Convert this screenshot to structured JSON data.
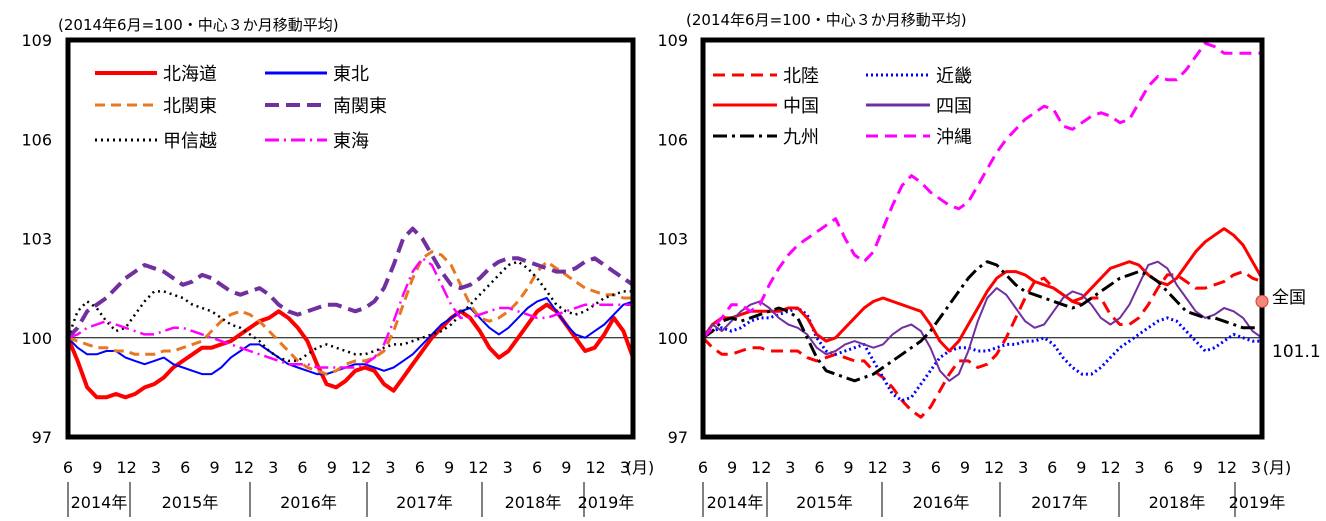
{
  "chart_data": [
    {
      "type": "line",
      "subtitle": "(2014年6月=100・中心３か月移動平均)",
      "ylim": [
        97,
        109
      ],
      "yticks": [
        97,
        100,
        103,
        106,
        109
      ],
      "baseline": 100,
      "x_month_labels": [
        "6",
        "9",
        "12",
        "3",
        "6",
        "9",
        "12",
        "3",
        "6",
        "9",
        "12",
        "3",
        "6",
        "9",
        "12",
        "3",
        "6",
        "9",
        "12",
        "3"
      ],
      "x_unit_label": "(月)",
      "x_year_labels": [
        "2014年",
        "2015年",
        "2016年",
        "2017年",
        "2018年",
        "2019年"
      ],
      "x_start": "2014-06",
      "x_end": "2019-03",
      "series": [
        {
          "name": "北海道",
          "color": "#ff0000",
          "dash": "solid",
          "width": 4,
          "values": [
            100.0,
            99.3,
            98.5,
            98.2,
            98.2,
            98.3,
            98.2,
            98.3,
            98.5,
            98.6,
            98.8,
            99.1,
            99.3,
            99.5,
            99.7,
            99.7,
            99.8,
            99.9,
            100.1,
            100.3,
            100.5,
            100.6,
            100.8,
            100.6,
            100.3,
            99.9,
            99.2,
            98.6,
            98.5,
            98.7,
            99.0,
            99.1,
            99.0,
            98.6,
            98.4,
            98.8,
            99.2,
            99.6,
            100.0,
            100.3,
            100.6,
            100.8,
            100.6,
            100.2,
            99.7,
            99.4,
            99.6,
            100.0,
            100.4,
            100.8,
            101.0,
            100.8,
            100.4,
            100.0,
            99.6,
            99.7,
            100.1,
            100.6,
            100.2,
            99.4
          ]
        },
        {
          "name": "東北",
          "color": "#0000ff",
          "dash": "solid",
          "width": 2,
          "values": [
            100.0,
            99.7,
            99.5,
            99.5,
            99.6,
            99.6,
            99.4,
            99.3,
            99.2,
            99.3,
            99.4,
            99.2,
            99.1,
            99.0,
            98.9,
            98.9,
            99.1,
            99.4,
            99.6,
            99.8,
            99.8,
            99.6,
            99.4,
            99.2,
            99.1,
            99.0,
            98.9,
            98.9,
            99.0,
            99.1,
            99.2,
            99.2,
            99.1,
            99.0,
            99.1,
            99.3,
            99.5,
            99.8,
            100.1,
            100.4,
            100.6,
            100.8,
            100.9,
            100.6,
            100.3,
            100.1,
            100.3,
            100.6,
            100.9,
            101.1,
            101.2,
            100.8,
            100.4,
            100.1,
            100.0,
            100.2,
            100.4,
            100.7,
            101.0,
            101.1
          ]
        },
        {
          "name": "北関東",
          "color": "#e87722",
          "dash": "10 6",
          "width": 3,
          "values": [
            100.0,
            99.9,
            99.8,
            99.7,
            99.7,
            99.6,
            99.6,
            99.5,
            99.5,
            99.5,
            99.6,
            99.6,
            99.7,
            99.8,
            99.9,
            100.2,
            100.5,
            100.7,
            100.8,
            100.7,
            100.5,
            100.2,
            99.9,
            99.6,
            99.3,
            99.1,
            99.0,
            98.9,
            99.0,
            99.2,
            99.3,
            99.3,
            99.4,
            99.6,
            100.2,
            101.0,
            101.8,
            102.4,
            102.6,
            102.5,
            102.2,
            101.6,
            101.0,
            100.6,
            100.5,
            100.6,
            100.8,
            101.1,
            101.5,
            102.0,
            102.3,
            102.1,
            101.9,
            101.7,
            101.5,
            101.4,
            101.3,
            101.3,
            101.2,
            101.2
          ]
        },
        {
          "name": "南関東",
          "color": "#7030a0",
          "dash": "14 7",
          "width": 4,
          "values": [
            100.0,
            100.3,
            100.8,
            101.0,
            101.2,
            101.5,
            101.8,
            102.0,
            102.2,
            102.1,
            102.0,
            101.8,
            101.6,
            101.7,
            101.9,
            101.8,
            101.6,
            101.4,
            101.3,
            101.4,
            101.5,
            101.3,
            101.0,
            100.8,
            100.7,
            100.8,
            100.9,
            101.0,
            101.0,
            100.9,
            100.8,
            100.9,
            101.1,
            101.5,
            102.2,
            103.0,
            103.3,
            103.0,
            102.5,
            102.0,
            101.6,
            101.5,
            101.6,
            101.8,
            102.1,
            102.3,
            102.4,
            102.4,
            102.3,
            102.2,
            102.1,
            102.0,
            102.0,
            102.1,
            102.3,
            102.4,
            102.2,
            102.0,
            101.8,
            101.6
          ]
        },
        {
          "name": "甲信越",
          "color": "#000000",
          "dash": "2 4",
          "width": 2.5,
          "values": [
            100.0,
            100.8,
            101.1,
            100.9,
            100.5,
            100.2,
            100.3,
            100.7,
            101.1,
            101.4,
            101.4,
            101.3,
            101.2,
            101.0,
            100.9,
            100.8,
            100.6,
            100.4,
            100.3,
            100.1,
            99.9,
            99.6,
            99.4,
            99.3,
            99.3,
            99.5,
            99.7,
            99.8,
            99.7,
            99.6,
            99.5,
            99.5,
            99.6,
            99.7,
            99.8,
            99.8,
            99.9,
            100.0,
            100.1,
            100.2,
            100.4,
            100.7,
            101.0,
            101.3,
            101.6,
            101.9,
            102.2,
            102.3,
            102.1,
            101.8,
            101.4,
            101.0,
            100.8,
            100.7,
            100.8,
            101.0,
            101.2,
            101.3,
            101.4,
            101.4
          ]
        },
        {
          "name": "東海",
          "color": "#ff00ff",
          "dash": "14 5 2 5",
          "width": 2.5,
          "values": [
            100.0,
            100.1,
            100.3,
            100.4,
            100.5,
            100.4,
            100.3,
            100.2,
            100.1,
            100.1,
            100.2,
            100.3,
            100.3,
            100.2,
            100.1,
            100.0,
            99.9,
            99.8,
            99.7,
            99.6,
            99.5,
            99.4,
            99.3,
            99.2,
            99.2,
            99.2,
            99.1,
            99.1,
            99.1,
            99.1,
            99.1,
            99.2,
            99.4,
            99.8,
            100.5,
            101.3,
            102.0,
            102.4,
            102.2,
            101.6,
            101.0,
            100.6,
            100.6,
            100.7,
            100.8,
            100.9,
            100.9,
            100.8,
            100.7,
            100.6,
            100.6,
            100.7,
            100.8,
            100.9,
            101.0,
            101.0,
            101.0,
            101.0,
            101.0,
            101.0
          ]
        }
      ]
    },
    {
      "type": "line",
      "subtitle": "(2014年6月=100・中心３か月移動平均)",
      "ylim": [
        97,
        109
      ],
      "yticks": [
        97,
        100,
        103,
        106,
        109
      ],
      "baseline": 100,
      "x_month_labels": [
        "6",
        "9",
        "12",
        "3",
        "6",
        "9",
        "12",
        "3",
        "6",
        "9",
        "12",
        "3",
        "6",
        "9",
        "12",
        "3",
        "6",
        "9",
        "12",
        "3"
      ],
      "x_unit_label": "(月)",
      "x_year_labels": [
        "2014年",
        "2015年",
        "2016年",
        "2017年",
        "2018年",
        "2019年"
      ],
      "x_start": "2014-06",
      "x_end": "2019-03",
      "annotation": {
        "label": "全国",
        "value_text": "101.1",
        "value": 101.1
      },
      "series": [
        {
          "name": "北陸",
          "color": "#ff0000",
          "dash": "12 7",
          "width": 3,
          "values": [
            100.0,
            99.7,
            99.5,
            99.5,
            99.6,
            99.7,
            99.7,
            99.6,
            99.6,
            99.6,
            99.6,
            99.4,
            99.3,
            99.4,
            99.5,
            99.4,
            99.3,
            99.3,
            99.0,
            98.8,
            98.5,
            98.1,
            97.8,
            97.6,
            97.9,
            98.4,
            98.9,
            99.3,
            99.3,
            99.1,
            99.2,
            99.5,
            100.0,
            100.6,
            101.2,
            101.7,
            101.8,
            101.5,
            101.3,
            101.1,
            101.0,
            101.2,
            101.2,
            100.7,
            100.4,
            100.4,
            100.6,
            101.0,
            101.5,
            101.9,
            101.9,
            101.7,
            101.5,
            101.5,
            101.6,
            101.7,
            101.9,
            102.0,
            101.8,
            101.7
          ]
        },
        {
          "name": "近畿",
          "color": "#0000ff",
          "dash": "2 3",
          "width": 3,
          "values": [
            100.0,
            100.2,
            100.3,
            100.2,
            100.3,
            100.5,
            100.6,
            100.6,
            100.7,
            100.8,
            100.9,
            100.7,
            100.0,
            99.6,
            99.5,
            99.6,
            99.7,
            99.8,
            99.3,
            98.8,
            98.3,
            98.1,
            98.2,
            98.6,
            99.0,
            99.4,
            99.6,
            99.7,
            99.7,
            99.6,
            99.6,
            99.7,
            99.8,
            99.8,
            99.9,
            99.9,
            100.0,
            99.8,
            99.4,
            99.1,
            98.9,
            98.9,
            99.1,
            99.4,
            99.7,
            99.9,
            100.1,
            100.3,
            100.5,
            100.6,
            100.5,
            100.2,
            99.9,
            99.6,
            99.7,
            99.9,
            100.1,
            100.0,
            99.9,
            99.9
          ]
        },
        {
          "name": "中国",
          "color": "#ff0000",
          "dash": "solid",
          "width": 3,
          "values": [
            100.0,
            100.4,
            100.6,
            100.6,
            100.7,
            100.8,
            100.8,
            100.8,
            100.8,
            100.9,
            100.9,
            100.6,
            100.1,
            99.9,
            100.0,
            100.3,
            100.6,
            100.9,
            101.1,
            101.2,
            101.1,
            101.0,
            100.9,
            100.8,
            100.4,
            99.9,
            99.6,
            99.9,
            100.4,
            100.9,
            101.4,
            101.8,
            102.0,
            102.0,
            101.9,
            101.7,
            101.6,
            101.5,
            101.3,
            101.1,
            101.2,
            101.5,
            101.8,
            102.1,
            102.2,
            102.3,
            102.2,
            101.9,
            101.7,
            101.6,
            101.8,
            102.2,
            102.6,
            102.9,
            103.1,
            103.3,
            103.1,
            102.8,
            102.3,
            101.8
          ]
        },
        {
          "name": "四国",
          "color": "#7030a0",
          "dash": "solid",
          "width": 2,
          "values": [
            100.0,
            100.4,
            100.2,
            100.5,
            100.8,
            101.0,
            101.1,
            100.9,
            100.6,
            100.4,
            100.3,
            100.1,
            99.7,
            99.5,
            99.6,
            99.8,
            99.9,
            99.8,
            99.7,
            99.8,
            100.1,
            100.3,
            100.4,
            100.2,
            99.7,
            99.0,
            98.7,
            98.9,
            99.6,
            100.5,
            101.2,
            101.5,
            101.3,
            100.9,
            100.5,
            100.3,
            100.4,
            100.8,
            101.2,
            101.4,
            101.3,
            101.0,
            100.6,
            100.4,
            100.6,
            101.0,
            101.6,
            102.2,
            102.3,
            102.1,
            101.6,
            101.2,
            100.8,
            100.6,
            100.7,
            100.9,
            100.8,
            100.6,
            100.2,
            100.0
          ]
        },
        {
          "name": "九州",
          "color": "#000000",
          "dash": "14 5 3 5",
          "width": 3,
          "values": [
            100.0,
            100.2,
            100.5,
            100.6,
            100.5,
            100.6,
            100.7,
            100.8,
            100.9,
            100.8,
            100.6,
            100.0,
            99.4,
            99.0,
            98.9,
            98.8,
            98.7,
            98.8,
            98.9,
            99.1,
            99.3,
            99.5,
            99.7,
            99.9,
            100.2,
            100.6,
            101.0,
            101.4,
            101.8,
            102.1,
            102.3,
            102.2,
            101.9,
            101.6,
            101.4,
            101.3,
            101.2,
            101.1,
            101.0,
            100.9,
            101.0,
            101.2,
            101.4,
            101.6,
            101.8,
            101.9,
            102.0,
            101.9,
            101.7,
            101.4,
            101.1,
            100.8,
            100.7,
            100.6,
            100.6,
            100.5,
            100.4,
            100.3,
            100.3,
            100.3
          ]
        },
        {
          "name": "沖縄",
          "color": "#ff00ff",
          "dash": "12 7",
          "width": 3,
          "values": [
            100.0,
            100.3,
            100.6,
            101.0,
            101.0,
            100.8,
            101.0,
            101.6,
            102.1,
            102.5,
            102.8,
            103.0,
            103.2,
            103.4,
            103.6,
            103.0,
            102.5,
            102.3,
            102.6,
            103.3,
            104.0,
            104.6,
            104.9,
            104.7,
            104.4,
            104.2,
            104.0,
            103.9,
            104.1,
            104.6,
            105.1,
            105.6,
            106.0,
            106.3,
            106.6,
            106.8,
            107.0,
            106.9,
            106.4,
            106.3,
            106.5,
            106.7,
            106.8,
            106.7,
            106.5,
            106.6,
            107.1,
            107.6,
            107.9,
            107.8,
            107.8,
            108.1,
            108.5,
            108.9,
            108.8,
            108.6,
            108.6,
            108.6,
            108.6,
            108.6
          ]
        }
      ]
    }
  ]
}
